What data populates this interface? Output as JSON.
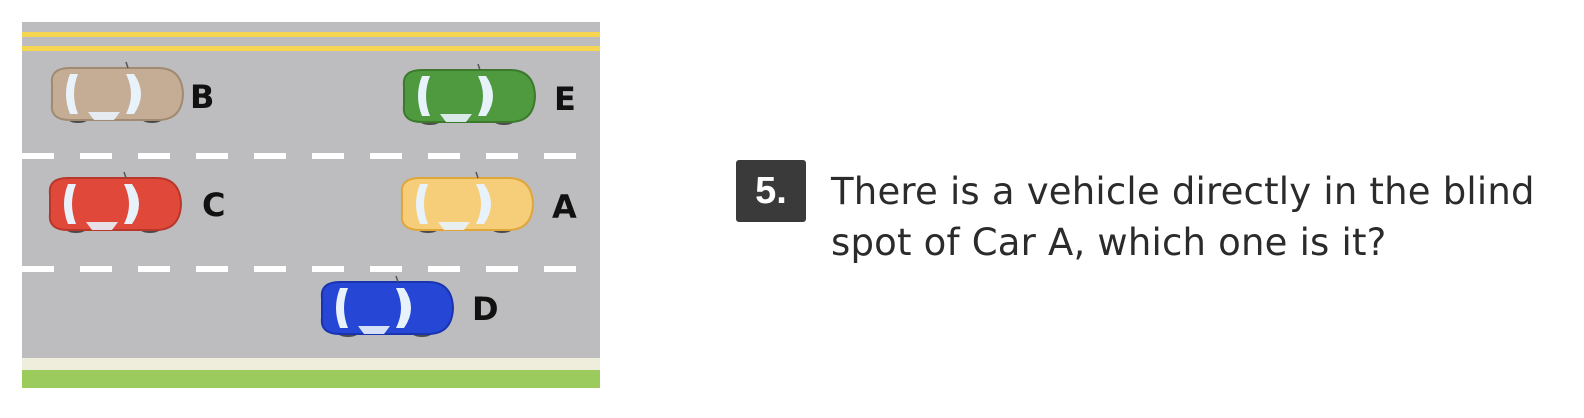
{
  "figure": {
    "cars": [
      {
        "label": "B",
        "color": "#c5ad95",
        "body_dark": "#a08a72"
      },
      {
        "label": "E",
        "color": "#4f9a3e",
        "body_dark": "#3b7a2d"
      },
      {
        "label": "C",
        "color": "#e0483a",
        "body_dark": "#b8362a"
      },
      {
        "label": "A",
        "color": "#f6cd78",
        "body_dark": "#e0a63a"
      },
      {
        "label": "D",
        "color": "#2646d6",
        "body_dark": "#1a34b0"
      }
    ],
    "colors": {
      "asphalt": "#bdbdbf",
      "center_line": "#f6d550",
      "shoulder": "#efeedd",
      "grass": "#9ccb5d",
      "lane_dash": "#ffffff",
      "window": "#e8f2fb"
    }
  },
  "question": {
    "number": "5.",
    "text": "There is a vehicle directly in the blind spot of Car A, which one is it?"
  }
}
